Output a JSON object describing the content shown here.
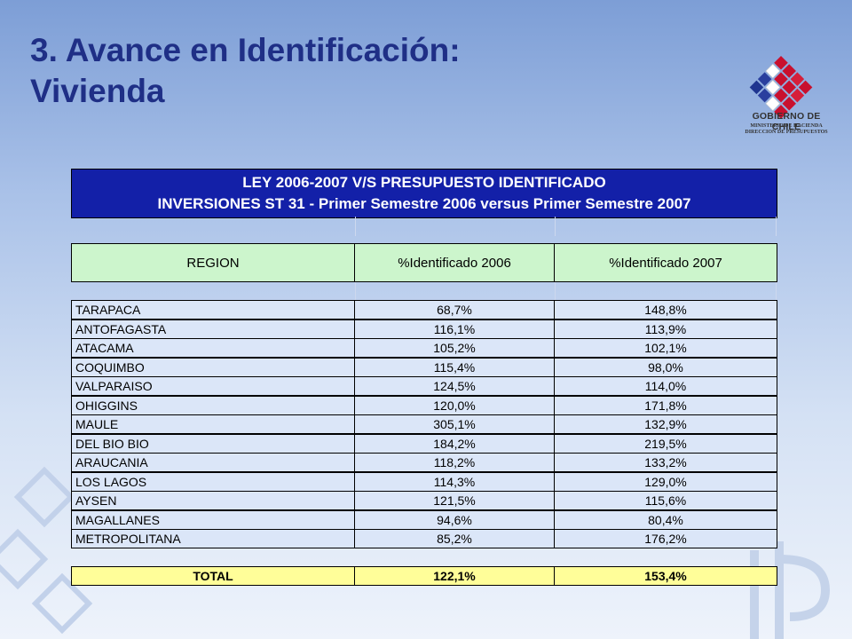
{
  "slide": {
    "title_line1": "3. Avance en Identificación:",
    "title_line2": "Vivienda"
  },
  "logo": {
    "name": "GOBIERNO DE CHILE",
    "sub1": "MINISTERIO DE HACIENDA",
    "sub2": "DIRECCION DE PRESUPUESTOS"
  },
  "table": {
    "header_line1": "LEY  2006-2007 V/S PRESUPUESTO IDENTIFICADO",
    "header_line2": "INVERSIONES ST 31  -  Primer Semestre 2006 versus Primer Semestre 2007",
    "columns": [
      "REGION",
      "%Identificado 2006",
      "%Identificado 2007"
    ],
    "rows": [
      {
        "region": "TARAPACA",
        "pct2006": "68,7%",
        "pct2007": "148,8%"
      },
      {
        "region": "ANTOFAGASTA",
        "pct2006": "116,1%",
        "pct2007": "113,9%"
      },
      {
        "region": "ATACAMA",
        "pct2006": "105,2%",
        "pct2007": "102,1%"
      },
      {
        "region": "COQUIMBO",
        "pct2006": "115,4%",
        "pct2007": "98,0%"
      },
      {
        "region": "VALPARAISO",
        "pct2006": "124,5%",
        "pct2007": "114,0%"
      },
      {
        "region": "OHIGGINS",
        "pct2006": "120,0%",
        "pct2007": "171,8%"
      },
      {
        "region": "MAULE",
        "pct2006": "305,1%",
        "pct2007": "132,9%"
      },
      {
        "region": "DEL BIO BIO",
        "pct2006": "184,2%",
        "pct2007": "219,5%"
      },
      {
        "region": "ARAUCANIA",
        "pct2006": "118,2%",
        "pct2007": "133,2%"
      },
      {
        "region": "LOS LAGOS",
        "pct2006": "114,3%",
        "pct2007": "129,0%"
      },
      {
        "region": "AYSEN",
        "pct2006": "121,5%",
        "pct2007": "115,6%"
      },
      {
        "region": "MAGALLANES",
        "pct2006": "94,6%",
        "pct2007": "80,4%"
      },
      {
        "region": "METROPOLITANA",
        "pct2006": "85,2%",
        "pct2007": "176,2%"
      }
    ],
    "total": {
      "label": "TOTAL",
      "pct2006": "122,1%",
      "pct2007": "153,4%"
    }
  },
  "colors": {
    "title": "#1f2f86",
    "header_bg": "#1320a8",
    "column_header_bg": "#ccf5cc",
    "row_bg": "#dbe6f8",
    "total_bg": "#fffe99"
  }
}
